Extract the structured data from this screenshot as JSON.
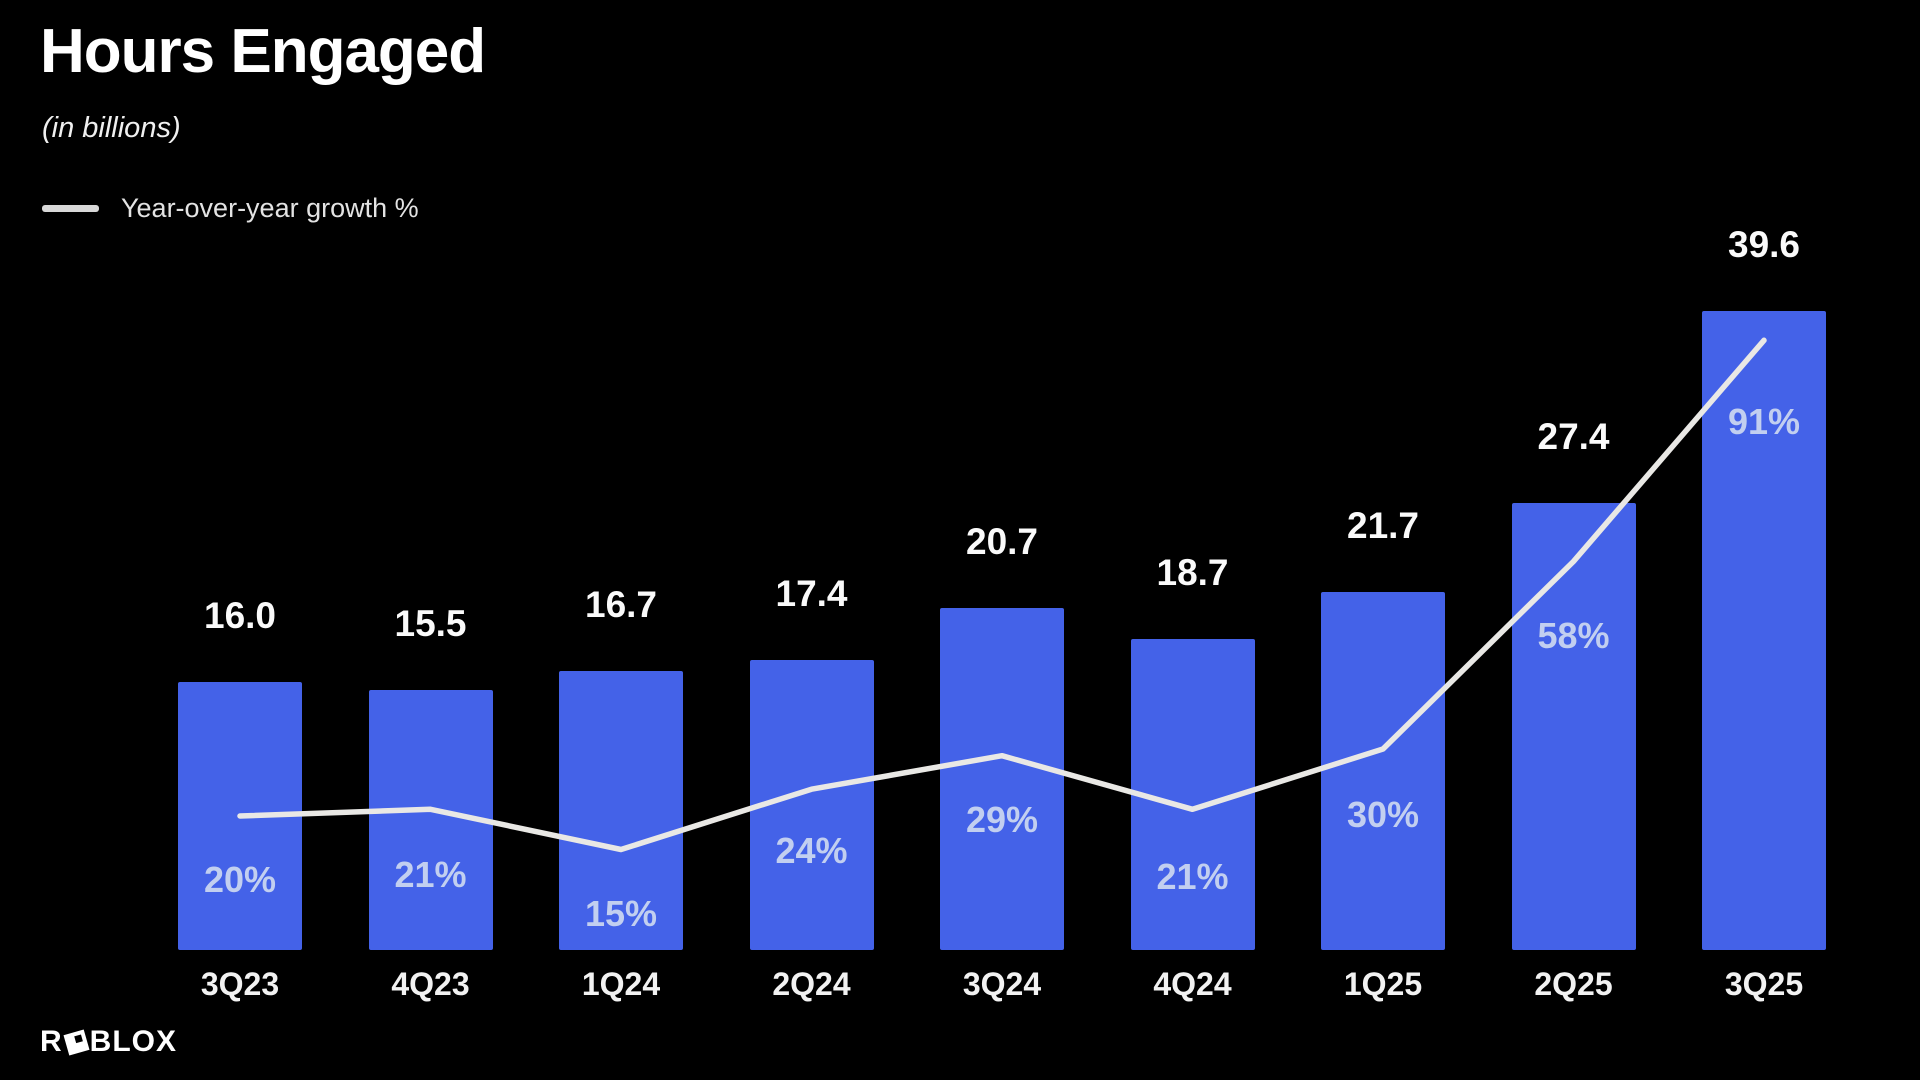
{
  "title": "Hours Engaged",
  "subtitle": "(in billions)",
  "legend": {
    "label": "Year-over-year growth %"
  },
  "logo": {
    "prefix": "R",
    "suffix": "BLOX",
    "mark": "roblox-tilted-square"
  },
  "colors": {
    "background": "#000000",
    "bar": "#4462e8",
    "line": "#e9e8e5",
    "value_label": "#fafafa",
    "percent_label": "#c2cff0",
    "axis_label": "#f2f2f2"
  },
  "chart_data": {
    "type": "bar",
    "title": "Hours Engaged (in billions)",
    "categories": [
      "3Q23",
      "4Q23",
      "1Q24",
      "2Q24",
      "3Q24",
      "4Q24",
      "1Q25",
      "2Q25",
      "3Q25"
    ],
    "series": [
      {
        "name": "Hours engaged (billions)",
        "type": "bar",
        "values": [
          16.0,
          15.5,
          16.7,
          17.4,
          20.7,
          18.7,
          21.7,
          27.4,
          39.6
        ],
        "labels": [
          "16.0",
          "15.5",
          "16.7",
          "17.4",
          "20.7",
          "18.7",
          "21.7",
          "27.4",
          "39.6"
        ]
      },
      {
        "name": "Year-over-year growth %",
        "type": "line",
        "values": [
          20,
          21,
          15,
          24,
          29,
          21,
          30,
          58,
          91
        ],
        "labels": [
          "20%",
          "21%",
          "15%",
          "24%",
          "29%",
          "21%",
          "30%",
          "58%",
          "91%"
        ]
      }
    ],
    "ylim": [
      0,
      40
    ],
    "grid": false,
    "legend_position": "top-left",
    "value_labels_shown": true
  }
}
